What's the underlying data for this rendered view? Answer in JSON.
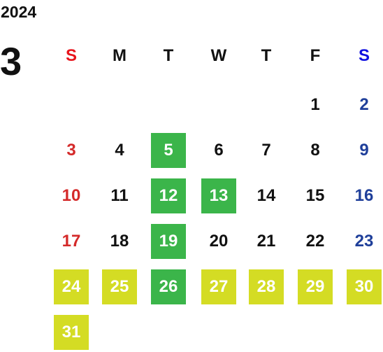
{
  "header": {
    "year": "2024",
    "month": "3"
  },
  "weekdays": [
    "S",
    "M",
    "T",
    "W",
    "T",
    "F",
    "S"
  ],
  "weeks": [
    [
      null,
      null,
      null,
      null,
      null,
      {
        "day": "1"
      },
      {
        "day": "2"
      }
    ],
    [
      {
        "day": "3"
      },
      {
        "day": "4"
      },
      {
        "day": "5",
        "color": "#3bb54a"
      },
      {
        "day": "6"
      },
      {
        "day": "7"
      },
      {
        "day": "8"
      },
      {
        "day": "9"
      }
    ],
    [
      {
        "day": "10"
      },
      {
        "day": "11"
      },
      {
        "day": "12",
        "color": "#3bb54a"
      },
      {
        "day": "13",
        "color": "#3bb54a"
      },
      {
        "day": "14"
      },
      {
        "day": "15"
      },
      {
        "day": "16"
      }
    ],
    [
      {
        "day": "17"
      },
      {
        "day": "18"
      },
      {
        "day": "19",
        "color": "#3bb54a"
      },
      {
        "day": "20"
      },
      {
        "day": "21"
      },
      {
        "day": "22"
      },
      {
        "day": "23"
      }
    ],
    [
      {
        "day": "24",
        "color": "#d4dc24"
      },
      {
        "day": "25",
        "color": "#d4dc24"
      },
      {
        "day": "26",
        "color": "#3bb54a"
      },
      {
        "day": "27",
        "color": "#d4dc24"
      },
      {
        "day": "28",
        "color": "#d4dc24"
      },
      {
        "day": "29",
        "color": "#d4dc24"
      },
      {
        "day": "30",
        "color": "#d4dc24"
      }
    ],
    [
      {
        "day": "31",
        "color": "#d4dc24"
      }
    ]
  ]
}
